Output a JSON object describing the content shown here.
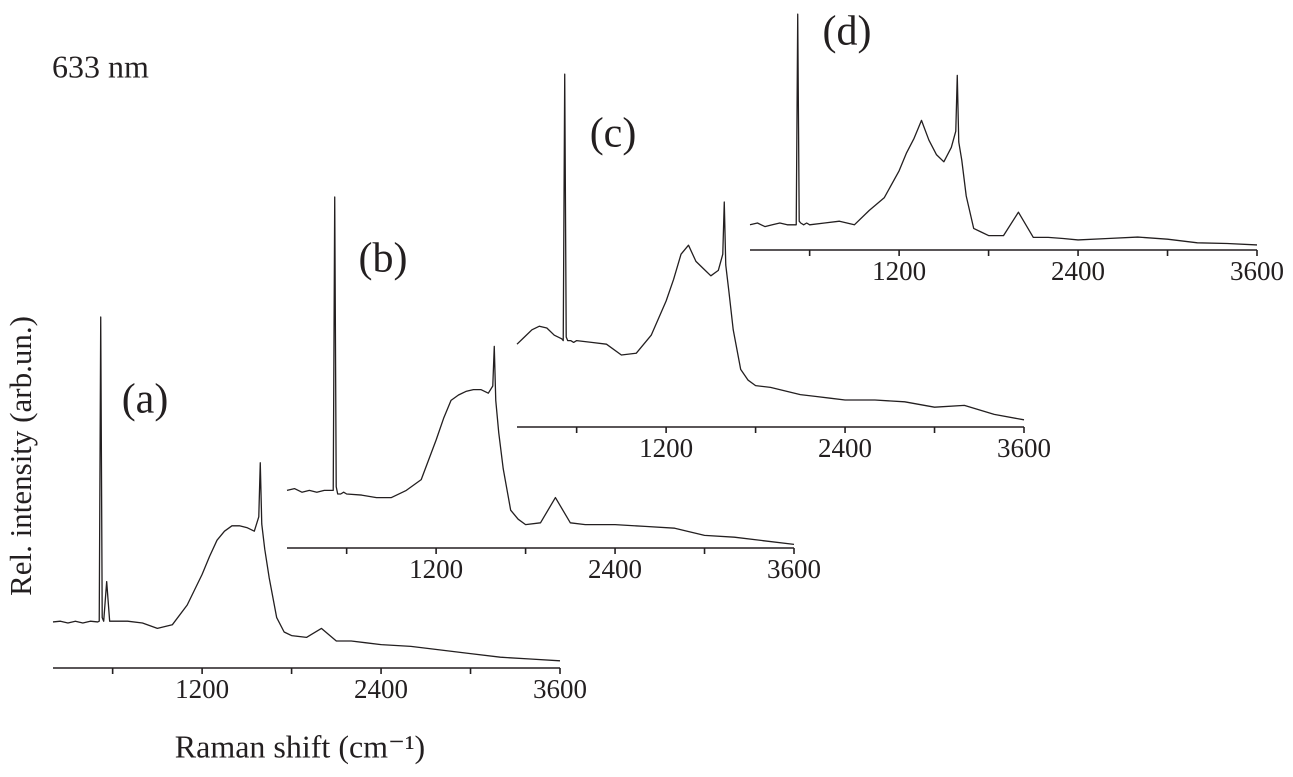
{
  "chart_data": [
    {
      "type": "line",
      "label": "(a)",
      "annotation": "633 nm",
      "xlabel": "Raman shift (cm⁻¹)",
      "ylabel": "Rel. intensity (arb.un.)",
      "color": "#231f20",
      "xlim": [
        200,
        3600
      ],
      "ylim": [
        0,
        100
      ],
      "xticks": [
        1200,
        2400,
        3600
      ],
      "minor_xticks": [
        600,
        1800,
        3000
      ],
      "x": [
        200,
        250,
        300,
        350,
        400,
        450,
        500,
        510,
        520,
        530,
        540,
        560,
        580,
        600,
        700,
        800,
        900,
        1000,
        1100,
        1200,
        1250,
        1300,
        1350,
        1400,
        1450,
        1500,
        1550,
        1580,
        1590,
        1600,
        1620,
        1650,
        1700,
        1750,
        1800,
        1900,
        2000,
        2100,
        2200,
        2300,
        2400,
        2600,
        2800,
        3000,
        3200,
        3400,
        3600
      ],
      "values": [
        12.8,
        13,
        12.5,
        13,
        12.5,
        13,
        12.8,
        13,
        97.5,
        14,
        13,
        24,
        13,
        13,
        13,
        12.5,
        11,
        12,
        17.5,
        26,
        31,
        35.5,
        38,
        39.5,
        39.5,
        39,
        38,
        42,
        57,
        40,
        33,
        25,
        14,
        10,
        9,
        8.5,
        11,
        7.5,
        7.5,
        7,
        6.5,
        6,
        5,
        4,
        3,
        2.5,
        2
      ]
    },
    {
      "type": "line",
      "label": "(b)",
      "color": "#231f20",
      "xlim": [
        200,
        3600
      ],
      "ylim": [
        0,
        100
      ],
      "xticks": [
        1200,
        2400,
        3600
      ],
      "minor_xticks": [
        600,
        1800,
        3000
      ],
      "x": [
        200,
        250,
        300,
        350,
        400,
        450,
        500,
        510,
        520,
        530,
        540,
        560,
        580,
        600,
        700,
        800,
        900,
        1000,
        1100,
        1200,
        1250,
        1300,
        1350,
        1400,
        1450,
        1500,
        1550,
        1580,
        1590,
        1600,
        1620,
        1650,
        1700,
        1750,
        1800,
        1900,
        2000,
        2100,
        2200,
        2300,
        2400,
        2600,
        2800,
        3000,
        3200,
        3400,
        3600
      ],
      "values": [
        16,
        16.5,
        15.5,
        16,
        15.5,
        16,
        16,
        16,
        97.5,
        17,
        15,
        15,
        15.5,
        15,
        14.7,
        14,
        14,
        16,
        19,
        30,
        36,
        41,
        42.5,
        43.5,
        44,
        44,
        43,
        45,
        56,
        41,
        32,
        22,
        10.5,
        8,
        6.5,
        7,
        14,
        7,
        6.5,
        6.5,
        6.5,
        6,
        5.5,
        3.5,
        3,
        2,
        1
      ]
    },
    {
      "type": "line",
      "label": "(c)",
      "color": "#231f20",
      "xlim": [
        200,
        3600
      ],
      "ylim": [
        0,
        100
      ],
      "xticks": [
        1200,
        2400,
        3600
      ],
      "minor_xticks": [
        600,
        1800,
        3000
      ],
      "x": [
        200,
        250,
        300,
        350,
        400,
        450,
        500,
        510,
        520,
        530,
        540,
        560,
        580,
        600,
        700,
        800,
        900,
        1000,
        1100,
        1200,
        1250,
        1300,
        1350,
        1400,
        1450,
        1500,
        1550,
        1580,
        1590,
        1600,
        1620,
        1650,
        1700,
        1750,
        1800,
        1900,
        2000,
        2100,
        2200,
        2300,
        2400,
        2600,
        2800,
        3000,
        3200,
        3400,
        3600
      ],
      "values": [
        23,
        25,
        27,
        28,
        27.5,
        25.5,
        24.5,
        24,
        98,
        25,
        24,
        24,
        23.5,
        24,
        23.5,
        23,
        20,
        20.5,
        25.5,
        35,
        41,
        48,
        50.5,
        46,
        44,
        42,
        43.5,
        48,
        62.5,
        45,
        38,
        27,
        16,
        13,
        11.5,
        11,
        10,
        9,
        8.5,
        8,
        7.5,
        7.5,
        7,
        5.5,
        6,
        3.5,
        2
      ]
    },
    {
      "type": "line",
      "label": "(d)",
      "color": "#231f20",
      "xlim": [
        200,
        3600
      ],
      "ylim": [
        0,
        100
      ],
      "xticks": [
        1200,
        2400,
        3600
      ],
      "minor_xticks": [
        600,
        1800,
        3000
      ],
      "x": [
        200,
        250,
        300,
        350,
        400,
        450,
        500,
        510,
        520,
        530,
        540,
        560,
        580,
        600,
        700,
        800,
        900,
        1000,
        1100,
        1200,
        1250,
        1300,
        1350,
        1400,
        1450,
        1500,
        1550,
        1580,
        1590,
        1600,
        1620,
        1650,
        1700,
        1750,
        1800,
        1900,
        2000,
        2100,
        2200,
        2300,
        2400,
        2600,
        2800,
        3000,
        3200,
        3400,
        3600
      ],
      "values": [
        7,
        7.5,
        6.5,
        7,
        7.5,
        7,
        7,
        7,
        65.5,
        8,
        7.5,
        7,
        7.5,
        7,
        7.5,
        8,
        7,
        11,
        14.5,
        22,
        27,
        31,
        36,
        30.5,
        26.5,
        24.5,
        28.5,
        33,
        48.5,
        30,
        25,
        15,
        6,
        5,
        4,
        4,
        10.5,
        3.5,
        3.5,
        3.2,
        2.8,
        3.2,
        3.6,
        3,
        2,
        1.8,
        1.4
      ]
    }
  ]
}
